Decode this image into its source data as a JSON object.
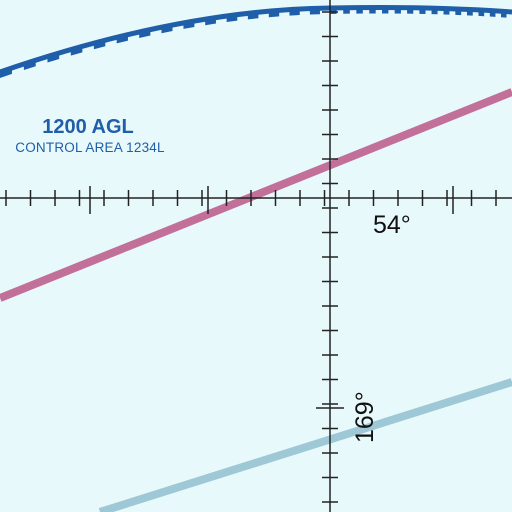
{
  "colors": {
    "background": "#e8f9fc",
    "airspace_boundary": "#1f5ea8",
    "magenta_route": "#c2709a",
    "blue_route": "#9fc8d6",
    "grid": "#222222"
  },
  "airspace": {
    "floor_label": "1200 AGL",
    "name_label": "CONTROL AREA 1234L"
  },
  "graticule": {
    "horizontal_label": "54°",
    "vertical_label": "169°"
  }
}
